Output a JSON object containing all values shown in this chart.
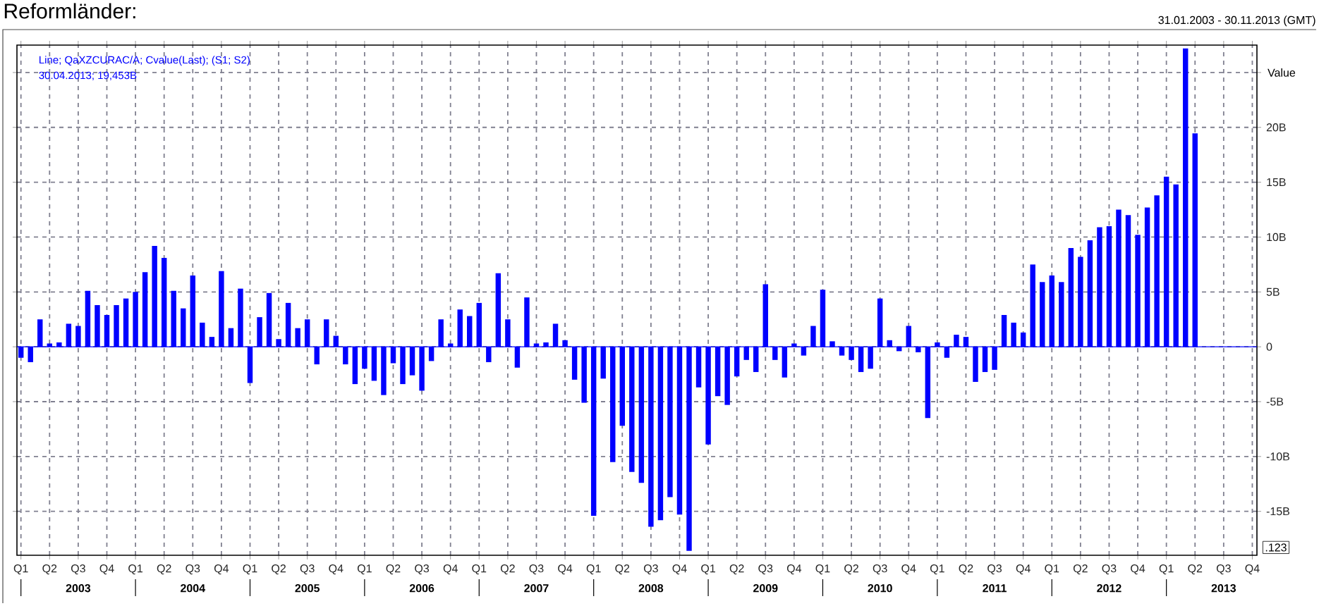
{
  "chart_data": {
    "type": "bar",
    "title": "Reformländer:",
    "subtitle": "31.01.2003 - 30.11.2013 (GMT)",
    "ylabel": "Value",
    "annotations": [
      "30.04.2013; 19,453B",
      ".123",
      "2003",
      "2004",
      "2005",
      "2006",
      "2007",
      "2008",
      "2009",
      "2010",
      "2011",
      "2012",
      "2013"
    ],
    "x": [
      "2003-01",
      "2003-02",
      "2003-03",
      "2003-04",
      "2003-05",
      "2003-06",
      "2003-07",
      "2003-08",
      "2003-09",
      "2003-10",
      "2003-11",
      "2003-12",
      "2004-01",
      "2004-02",
      "2004-03",
      "2004-04",
      "2004-05",
      "2004-06",
      "2004-07",
      "2004-08",
      "2004-09",
      "2004-10",
      "2004-11",
      "2004-12",
      "2005-01",
      "2005-02",
      "2005-03",
      "2005-04",
      "2005-05",
      "2005-06",
      "2005-07",
      "2005-08",
      "2005-09",
      "2005-10",
      "2005-11",
      "2005-12",
      "2006-01",
      "2006-02",
      "2006-03",
      "2006-04",
      "2006-05",
      "2006-06",
      "2006-07",
      "2006-08",
      "2006-09",
      "2006-10",
      "2006-11",
      "2006-12",
      "2007-01",
      "2007-02",
      "2007-03",
      "2007-04",
      "2007-05",
      "2007-06",
      "2007-07",
      "2007-08",
      "2007-09",
      "2007-10",
      "2007-11",
      "2007-12",
      "2008-01",
      "2008-02",
      "2008-03",
      "2008-04",
      "2008-05",
      "2008-06",
      "2008-07",
      "2008-08",
      "2008-09",
      "2008-10",
      "2008-11",
      "2008-12",
      "2009-01",
      "2009-02",
      "2009-03",
      "2009-04",
      "2009-05",
      "2009-06",
      "2009-07",
      "2009-08",
      "2009-09",
      "2009-10",
      "2009-11",
      "2009-12",
      "2010-01",
      "2010-02",
      "2010-03",
      "2010-04",
      "2010-05",
      "2010-06",
      "2010-07",
      "2010-08",
      "2010-09",
      "2010-10",
      "2010-11",
      "2010-12",
      "2011-01",
      "2011-02",
      "2011-03",
      "2011-04",
      "2011-05",
      "2011-06",
      "2011-07",
      "2011-08",
      "2011-09",
      "2011-10",
      "2011-11",
      "2011-12",
      "2012-01",
      "2012-02",
      "2012-03",
      "2012-04",
      "2012-05",
      "2012-06",
      "2012-07",
      "2012-08",
      "2012-09",
      "2012-10",
      "2012-11",
      "2012-12",
      "2013-01",
      "2013-02",
      "2013-03",
      "2013-04"
    ],
    "series": [
      {
        "name": "Line; QaXZCURAC/A; Cvalue(Last); (S1; S2)",
        "color": "#0000ff",
        "values": [
          -1.0,
          -1.4,
          2.5,
          0.3,
          0.4,
          2.1,
          1.9,
          5.1,
          3.8,
          2.9,
          3.8,
          4.4,
          5.0,
          6.8,
          9.2,
          8.1,
          5.1,
          3.5,
          6.5,
          2.2,
          0.9,
          6.9,
          1.7,
          5.3,
          -3.3,
          2.7,
          4.9,
          0.7,
          4.0,
          1.7,
          2.5,
          -1.6,
          2.5,
          1.0,
          -1.6,
          -3.4,
          -2.0,
          -3.1,
          -4.4,
          -1.5,
          -3.4,
          -2.6,
          -4.0,
          -1.3,
          2.5,
          0.3,
          3.4,
          2.8,
          4.0,
          -1.4,
          6.7,
          2.5,
          -1.9,
          4.5,
          0.3,
          0.4,
          2.1,
          0.6,
          -3.0,
          -5.1,
          -15.4,
          -2.9,
          -10.5,
          -7.2,
          -11.4,
          -12.4,
          -16.4,
          -15.8,
          -13.7,
          -15.3,
          -18.6,
          -3.7,
          -8.9,
          -4.5,
          -5.3,
          -2.7,
          -1.2,
          -2.3,
          5.7,
          -1.2,
          -2.8,
          0.3,
          -0.8,
          1.9,
          5.2,
          0.5,
          -0.8,
          -1.2,
          -2.3,
          -2.0,
          4.4,
          0.6,
          -0.4,
          1.9,
          -0.5,
          -6.5,
          0.4,
          -1.0,
          1.1,
          0.9,
          -3.2,
          -2.3,
          -2.1,
          2.9,
          2.2,
          1.3,
          7.5,
          5.9,
          6.5,
          5.9,
          9.0,
          8.2,
          9.7,
          10.9,
          11.0,
          12.5,
          12.0,
          10.2,
          12.7,
          13.8,
          15.5,
          14.8,
          27.2,
          19.453
        ]
      }
    ],
    "xlim": [
      "2002-12-19",
      "2013-10-16"
    ],
    "xticks": [
      {
        "value": "2003-01-01",
        "label": "Q1"
      },
      {
        "value": "2003-04-01",
        "label": "Q2"
      },
      {
        "value": "2003-07-01",
        "label": "Q3"
      },
      {
        "value": "2003-10-01",
        "label": "Q4"
      },
      {
        "value": "2004-01-01",
        "label": "Q1"
      },
      {
        "value": "2004-04-01",
        "label": "Q2"
      },
      {
        "value": "2004-07-01",
        "label": "Q3"
      },
      {
        "value": "2004-10-01",
        "label": "Q4"
      },
      {
        "value": "2005-01-01",
        "label": "Q1"
      },
      {
        "value": "2005-04-01",
        "label": "Q2"
      },
      {
        "value": "2005-07-01",
        "label": "Q3"
      },
      {
        "value": "2005-10-01",
        "label": "Q4"
      },
      {
        "value": "2006-01-01",
        "label": "Q1"
      },
      {
        "value": "2006-04-01",
        "label": "Q2"
      },
      {
        "value": "2006-07-01",
        "label": "Q3"
      },
      {
        "value": "2006-10-01",
        "label": "Q4"
      },
      {
        "value": "2007-01-01",
        "label": "Q1"
      },
      {
        "value": "2007-04-01",
        "label": "Q2"
      },
      {
        "value": "2007-07-01",
        "label": "Q3"
      },
      {
        "value": "2007-10-01",
        "label": "Q4"
      },
      {
        "value": "2008-01-01",
        "label": "Q1"
      },
      {
        "value": "2008-04-01",
        "label": "Q2"
      },
      {
        "value": "2008-07-01",
        "label": "Q3"
      },
      {
        "value": "2008-10-01",
        "label": "Q4"
      },
      {
        "value": "2009-01-01",
        "label": "Q1"
      },
      {
        "value": "2009-04-01",
        "label": "Q2"
      },
      {
        "value": "2009-07-01",
        "label": "Q3"
      },
      {
        "value": "2009-10-01",
        "label": "Q4"
      },
      {
        "value": "2010-01-01",
        "label": "Q1"
      },
      {
        "value": "2010-04-01",
        "label": "Q2"
      },
      {
        "value": "2010-07-01",
        "label": "Q3"
      },
      {
        "value": "2010-10-01",
        "label": "Q4"
      },
      {
        "value": "2011-01-01",
        "label": "Q1"
      },
      {
        "value": "2011-04-01",
        "label": "Q2"
      },
      {
        "value": "2011-07-01",
        "label": "Q3"
      },
      {
        "value": "2011-10-01",
        "label": "Q4"
      },
      {
        "value": "2012-01-01",
        "label": "Q1"
      },
      {
        "value": "2012-04-01",
        "label": "Q2"
      },
      {
        "value": "2012-07-01",
        "label": "Q3"
      },
      {
        "value": "2012-10-01",
        "label": "Q4"
      },
      {
        "value": "2013-01-01",
        "label": "Q1"
      },
      {
        "value": "2013-04-01",
        "label": "Q2"
      },
      {
        "value": "2013-07-01",
        "label": "Q3"
      },
      {
        "value": "2013-10-01",
        "label": "Q4"
      }
    ],
    "ylim": [
      -19,
      27.5
    ],
    "yticks": [
      {
        "value": -15,
        "label": "-15B"
      },
      {
        "value": -10,
        "label": "-10B"
      },
      {
        "value": -5,
        "label": "-5B"
      },
      0,
      {
        "value": 5,
        "label": "5B"
      },
      {
        "value": 10,
        "label": "10B"
      },
      {
        "value": 15,
        "label": "15B"
      },
      {
        "value": 20,
        "label": "20B"
      },
      {
        "value": 25,
        "label": null
      }
    ],
    "ref_lines": [
      {
        "axis": "y",
        "value": 0,
        "color": "#0000ff"
      }
    ],
    "grid": true,
    "legend": "top left"
  }
}
